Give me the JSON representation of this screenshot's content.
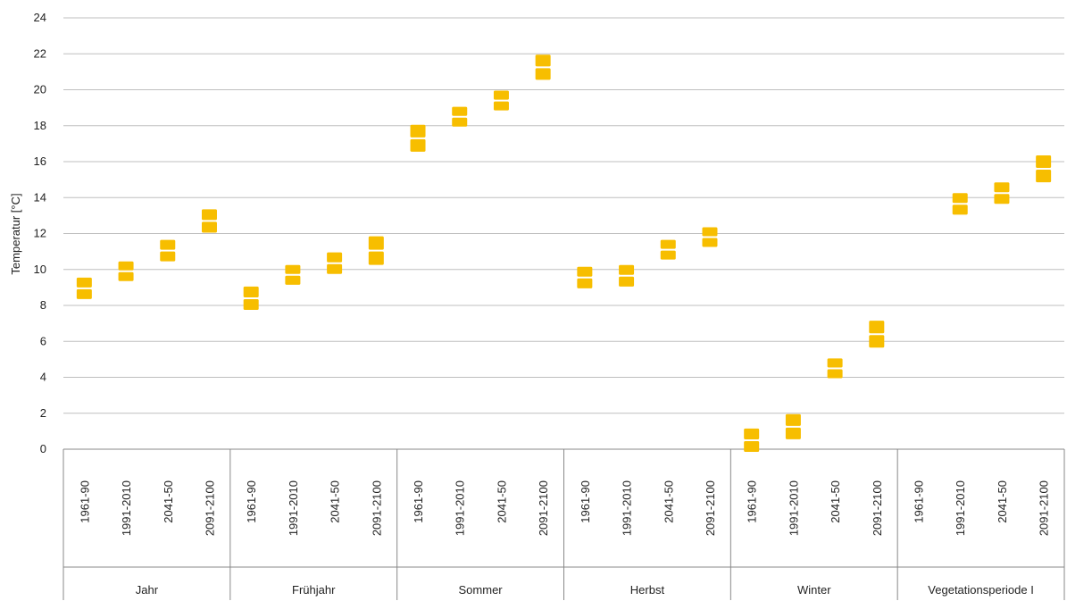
{
  "chart_data": {
    "type": "scatter",
    "ylabel": "Temperatur [°C]",
    "ylim": [
      0,
      24
    ],
    "yticks": [
      0,
      2,
      4,
      6,
      8,
      10,
      12,
      14,
      16,
      18,
      20,
      22,
      24
    ],
    "grid": true,
    "marker_color": "#F7BE00",
    "periods": [
      "1961-90",
      "1991-2010",
      "2041-50",
      "2091-2100"
    ],
    "groups": [
      {
        "name": "Jahr",
        "values": [
          [
            8.7,
            9.2
          ],
          [
            9.7,
            10.1
          ],
          [
            10.8,
            11.3
          ],
          [
            12.4,
            13.0
          ]
        ]
      },
      {
        "name": "Frühjahr",
        "values": [
          [
            8.1,
            8.7
          ],
          [
            9.5,
            9.9
          ],
          [
            10.1,
            10.6
          ],
          [
            10.6,
            11.5
          ]
        ]
      },
      {
        "name": "Sommer",
        "values": [
          [
            16.9,
            17.7
          ],
          [
            18.3,
            18.7
          ],
          [
            19.2,
            19.6
          ],
          [
            20.9,
            21.6
          ]
        ]
      },
      {
        "name": "Herbst",
        "values": [
          [
            9.3,
            9.8
          ],
          [
            9.4,
            9.9
          ],
          [
            10.9,
            11.3
          ],
          [
            11.6,
            12.0
          ]
        ]
      },
      {
        "name": "Winter",
        "values": [
          [
            0.2,
            0.8
          ],
          [
            0.9,
            1.6
          ],
          [
            4.3,
            4.7
          ],
          [
            6.0,
            6.8
          ]
        ]
      },
      {
        "name": "Vegetationsperiode I",
        "values": [
          null,
          [
            13.4,
            13.9
          ],
          [
            14.0,
            14.5
          ],
          [
            15.2,
            16.0
          ]
        ]
      }
    ]
  }
}
